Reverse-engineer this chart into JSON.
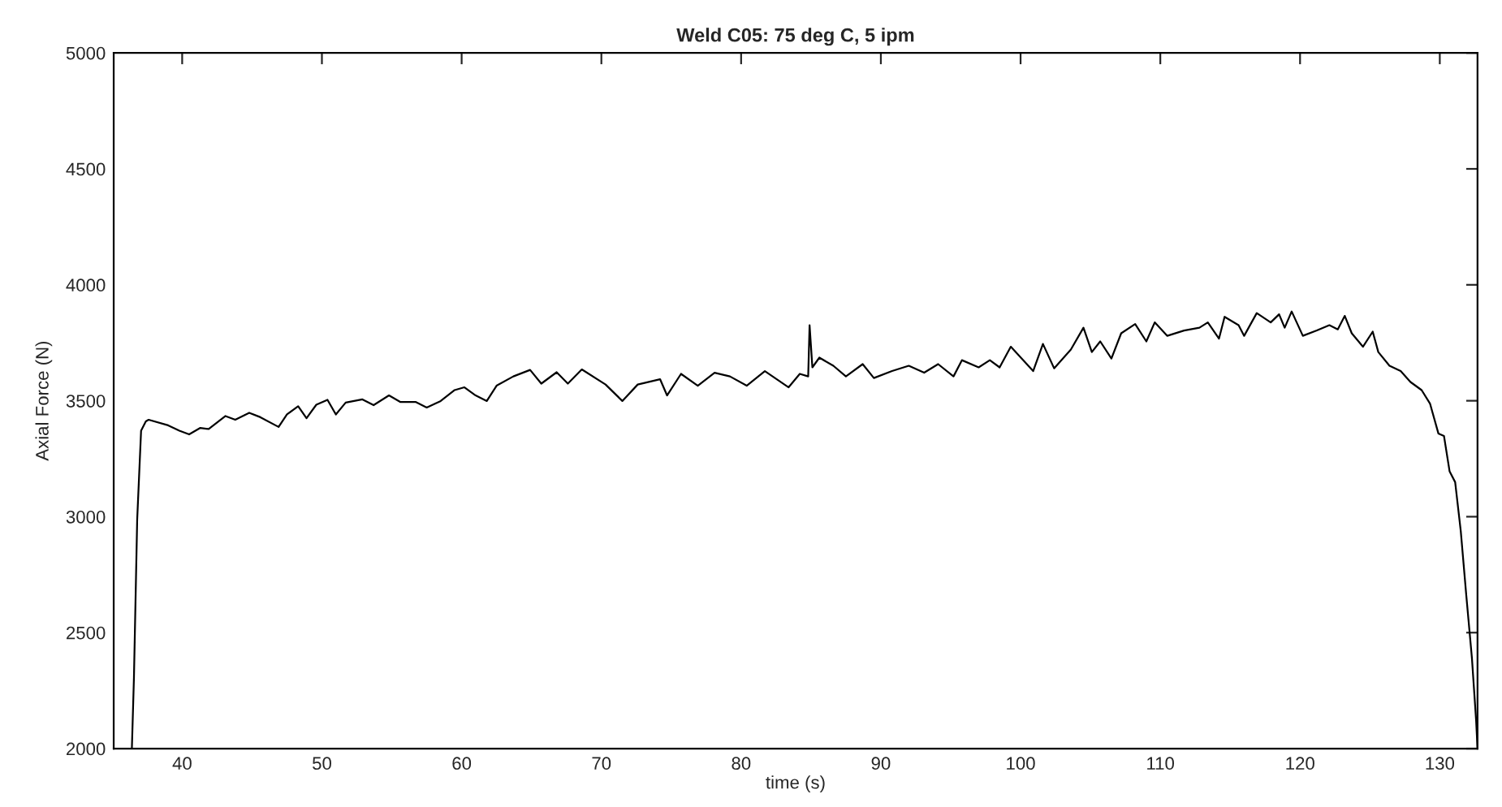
{
  "chart_data": {
    "type": "line",
    "title": "Weld C05: 75 deg C, 5 ipm",
    "xlabel": "time (s)",
    "ylabel": "Axial Force (N)",
    "xlim": [
      35.1,
      132.7
    ],
    "ylim": [
      2000,
      5000
    ],
    "xticks": [
      40,
      50,
      60,
      70,
      80,
      90,
      100,
      110,
      120,
      130
    ],
    "yticks": [
      2000,
      2500,
      3000,
      3500,
      4000,
      4500,
      5000
    ],
    "grid": false,
    "series": [
      {
        "color": "#000000",
        "x": [
          36.4,
          36.55,
          36.78,
          37.06,
          37.4,
          37.6,
          39.0,
          39.8,
          40.5,
          41.3,
          41.9,
          43.1,
          43.8,
          44.8,
          45.6,
          46.9,
          47.5,
          48.3,
          48.9,
          49.6,
          50.4,
          51.0,
          51.7,
          52.9,
          53.7,
          54.8,
          55.6,
          56.7,
          57.5,
          58.5,
          59.5,
          60.2,
          61.0,
          61.8,
          62.5,
          63.7,
          64.9,
          65.7,
          66.8,
          67.6,
          68.6,
          70.3,
          71.5,
          72.6,
          74.2,
          74.7,
          75.7,
          76.9,
          78.1,
          79.2,
          80.4,
          81.7,
          83.4,
          84.2,
          84.8,
          84.9,
          85.1,
          85.6,
          86.6,
          87.5,
          88.7,
          89.5,
          90.8,
          92.0,
          93.1,
          94.1,
          95.2,
          95.8,
          97.0,
          97.8,
          98.5,
          99.3,
          100.1,
          100.9,
          101.6,
          102.4,
          103.6,
          104.5,
          105.1,
          105.7,
          106.5,
          107.2,
          108.2,
          109.0,
          109.6,
          110.5,
          111.7,
          112.8,
          113.4,
          114.2,
          114.6,
          115.6,
          116.0,
          116.9,
          117.9,
          118.5,
          118.9,
          119.4,
          120.2,
          121.2,
          122.1,
          122.7,
          123.2,
          123.7,
          124.5,
          125.2,
          125.6,
          126.4,
          127.2,
          127.9,
          128.7,
          129.3,
          129.9,
          130.3,
          130.7,
          131.1,
          131.5,
          131.9,
          132.3,
          132.6,
          132.7
        ],
        "values": [
          2000,
          2308,
          2986,
          3371,
          3411,
          3418,
          3394,
          3371,
          3355,
          3383,
          3378,
          3434,
          3418,
          3448,
          3429,
          3387,
          3441,
          3476,
          3425,
          3483,
          3504,
          3441,
          3492,
          3506,
          3481,
          3523,
          3495,
          3495,
          3471,
          3499,
          3546,
          3558,
          3523,
          3499,
          3565,
          3605,
          3633,
          3574,
          3623,
          3574,
          3635,
          3570,
          3499,
          3570,
          3593,
          3523,
          3616,
          3565,
          3621,
          3605,
          3565,
          3628,
          3558,
          3616,
          3605,
          3826,
          3644,
          3686,
          3651,
          3605,
          3658,
          3598,
          3628,
          3651,
          3621,
          3658,
          3605,
          3675,
          3644,
          3675,
          3644,
          3733,
          3681,
          3628,
          3745,
          3640,
          3721,
          3815,
          3710,
          3756,
          3682,
          3791,
          3831,
          3756,
          3838,
          3780,
          3803,
          3815,
          3838,
          3768,
          3862,
          3826,
          3780,
          3878,
          3838,
          3873,
          3815,
          3885,
          3780,
          3803,
          3826,
          3808,
          3866,
          3791,
          3733,
          3798,
          3710,
          3651,
          3628,
          3581,
          3546,
          3488,
          3359,
          3348,
          3196,
          3149,
          2939,
          2658,
          2390,
          2121,
          2000
        ]
      }
    ]
  }
}
